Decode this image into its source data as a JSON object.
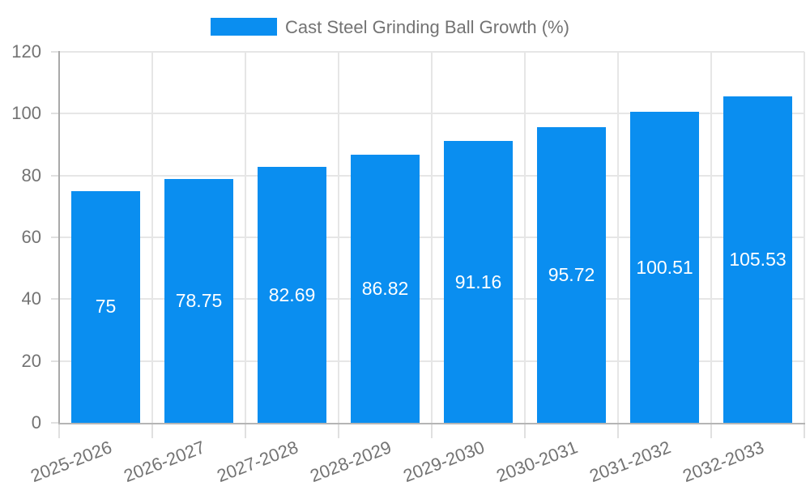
{
  "legend": {
    "label": "Cast Steel Grinding Ball Growth (%)"
  },
  "chart_data": {
    "type": "bar",
    "title": "",
    "xlabel": "",
    "ylabel": "",
    "categories": [
      "2025-2026",
      "2026-2027",
      "2027-2028",
      "2028-2029",
      "2029-2030",
      "2030-2031",
      "2031-2032",
      "2032-2033"
    ],
    "series": [
      {
        "name": "Cast Steel Grinding Ball Growth (%)",
        "values": [
          75,
          78.75,
          82.69,
          86.82,
          91.16,
          95.72,
          100.51,
          105.53
        ],
        "value_labels": [
          "75",
          "78.75",
          "82.69",
          "86.82",
          "91.16",
          "95.72",
          "100.51",
          "105.53"
        ]
      }
    ],
    "ylim": [
      0,
      120
    ],
    "yticks": [
      0,
      20,
      40,
      60,
      80,
      100,
      120
    ],
    "grid": true,
    "legend_position": "top-center",
    "x_label_rotation_deg": -21,
    "colors": {
      "bar": "#0a8ef0",
      "bar_label": "#ffffff",
      "axis_text": "#737373",
      "gridline": "#e6e6e6",
      "tick": "#e0e0e0",
      "y_axis_line": "#a9a9a9",
      "x_axis_line": "#b5b5b5",
      "background": "#ffffff"
    }
  }
}
